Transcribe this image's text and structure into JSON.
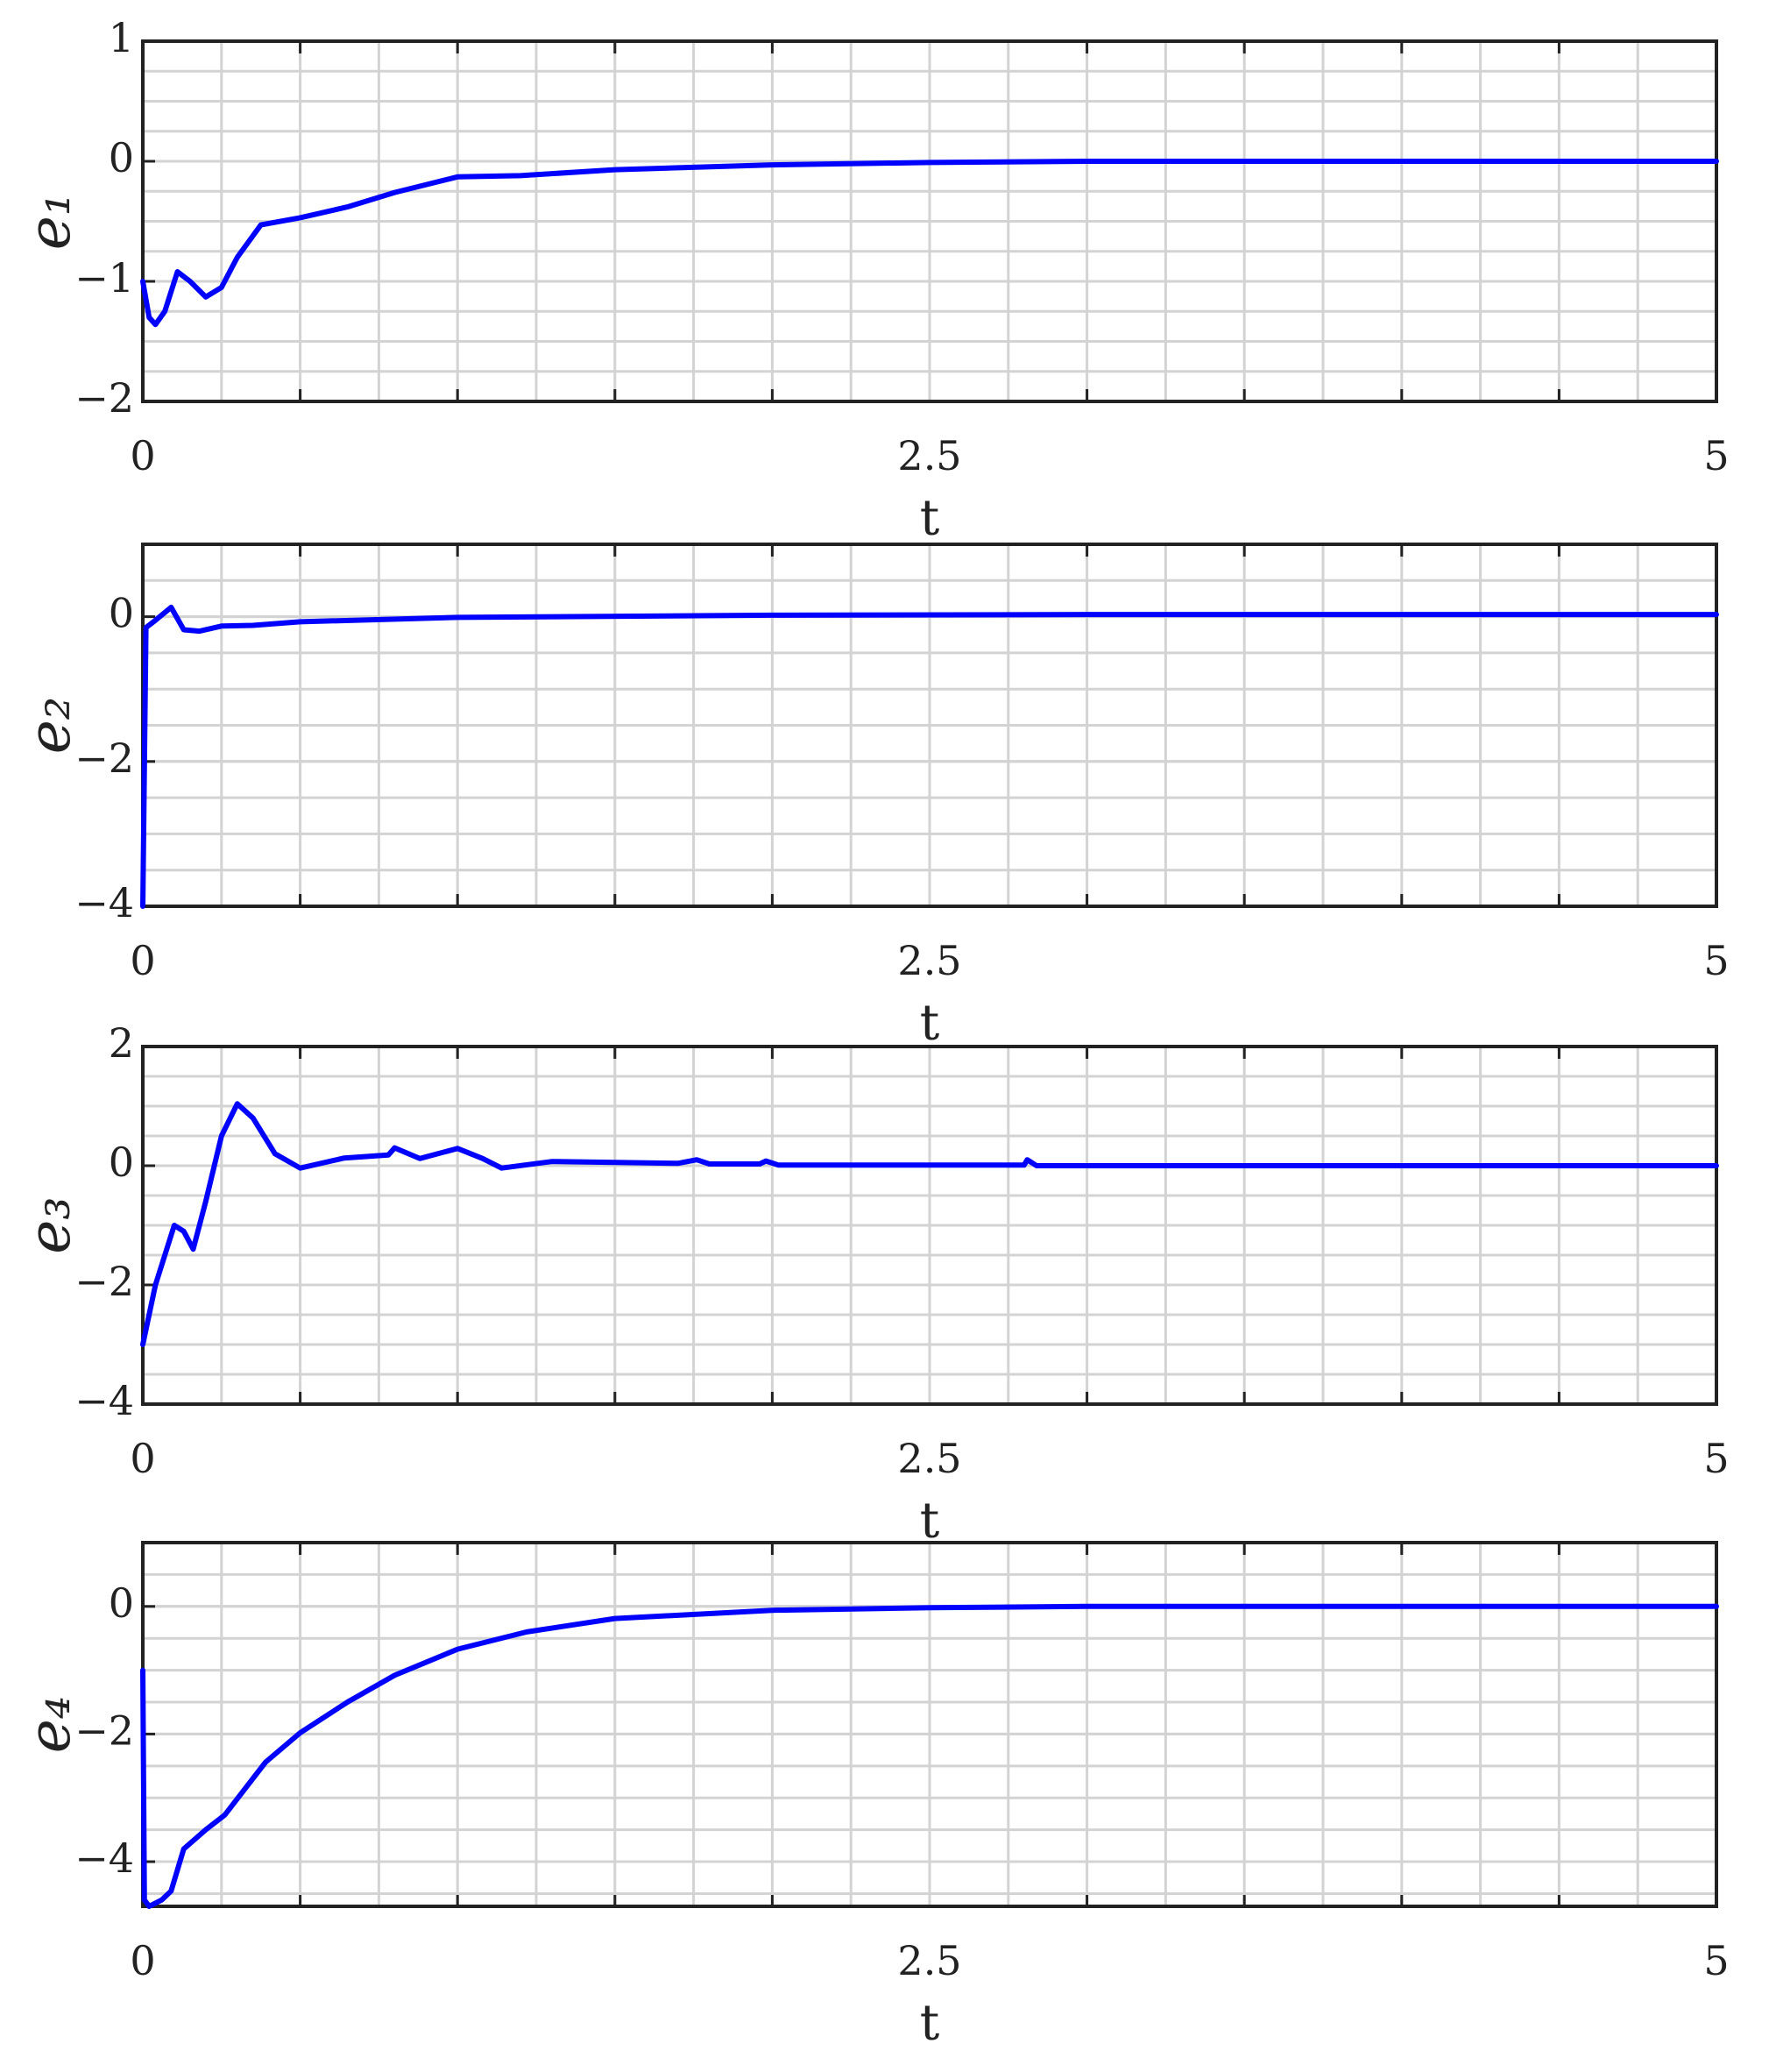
{
  "chart_data": [
    {
      "type": "line",
      "xlabel": "t",
      "ylabel": "e₁",
      "x": [
        0,
        0.02,
        0.04,
        0.07,
        0.11,
        0.15,
        0.2,
        0.25,
        0.3,
        0.375,
        0.5,
        0.65,
        0.8,
        1.0,
        1.2,
        1.5,
        2.0,
        2.5,
        3.0,
        4.0,
        5.0
      ],
      "series": [
        {
          "color": "#0000ff",
          "values": [
            -1.0,
            -1.3,
            -1.36,
            -1.25,
            -0.92,
            -1.0,
            -1.13,
            -1.05,
            -0.8,
            -0.53,
            -0.47,
            -0.38,
            -0.26,
            -0.13,
            -0.12,
            -0.07,
            -0.03,
            -0.01,
            0,
            0,
            0
          ]
        }
      ],
      "xlim": [
        0,
        5
      ],
      "xticks": [
        0,
        2.5,
        5
      ],
      "ylim": [
        -2,
        1
      ],
      "yticks": [
        {
          "value": -2,
          "label": "−2"
        },
        {
          "value": -1,
          "label": "−1"
        },
        0,
        1
      ],
      "grid": true
    },
    {
      "type": "line",
      "xlabel": "t",
      "ylabel": "e₂",
      "x": [
        0,
        0.01,
        0.04,
        0.09,
        0.13,
        0.18,
        0.25,
        0.35,
        0.5,
        1.0,
        2.0,
        3.0,
        4.0,
        5.0
      ],
      "series": [
        {
          "color": "#0000ff",
          "values": [
            -4,
            -0.15,
            -0.05,
            0.13,
            -0.18,
            -0.2,
            -0.13,
            -0.12,
            -0.07,
            -0.01,
            0.02,
            0.03,
            0.03,
            0.03
          ]
        }
      ],
      "xlim": [
        0,
        5
      ],
      "xticks": [
        0,
        2.5,
        5
      ],
      "ylim": [
        -4,
        1
      ],
      "yticks": [
        {
          "value": -4,
          "label": "−4"
        },
        {
          "value": -2,
          "label": "−2"
        },
        0
      ],
      "grid": true
    },
    {
      "type": "line",
      "xlabel": "t",
      "ylabel": "e₃",
      "x": [
        0,
        0.04,
        0.1,
        0.13,
        0.16,
        0.2,
        0.25,
        0.3,
        0.35,
        0.42,
        0.5,
        0.64,
        0.78,
        0.8,
        0.88,
        1.0,
        1.08,
        1.14,
        1.3,
        1.7,
        1.76,
        1.8,
        1.96,
        1.98,
        2.02,
        2.8,
        2.81,
        2.84,
        3.5,
        5
      ],
      "series": [
        {
          "color": "#0000ff",
          "values": [
            -3,
            -2,
            -1.0,
            -1.1,
            -1.4,
            -0.6,
            0.5,
            1.04,
            0.8,
            0.2,
            -0.04,
            0.13,
            0.18,
            0.3,
            0.12,
            0.29,
            0.12,
            -0.04,
            0.07,
            0.04,
            0.1,
            0.03,
            0.03,
            0.08,
            0.01,
            0.01,
            0.1,
            0,
            0,
            0
          ]
        }
      ],
      "xlim": [
        0,
        5
      ],
      "xticks": [
        0,
        2.5,
        5
      ],
      "ylim": [
        -4,
        2
      ],
      "yticks": [
        {
          "value": -4,
          "label": "−4"
        },
        {
          "value": -2,
          "label": "−2"
        },
        0,
        2
      ],
      "grid": true
    },
    {
      "type": "line",
      "xlabel": "t",
      "ylabel": "e₄",
      "x": [
        0,
        0.005,
        0.02,
        0.06,
        0.09,
        0.13,
        0.2,
        0.26,
        0.39,
        0.5,
        0.65,
        0.8,
        1.0,
        1.22,
        1.5,
        2.0,
        2.5,
        3.0,
        5
      ],
      "series": [
        {
          "color": "#0000ff",
          "values": [
            -1,
            -4.6,
            -4.7,
            -4.6,
            -4.46,
            -3.8,
            -3.5,
            -3.27,
            -2.44,
            -1.98,
            -1.5,
            -1.08,
            -0.67,
            -0.4,
            -0.19,
            -0.06,
            -0.02,
            0,
            0
          ]
        }
      ],
      "xlim": [
        0,
        5
      ],
      "xticks": [
        0,
        2.5,
        5
      ],
      "ylim": [
        -4.7,
        1
      ],
      "yticks": [
        {
          "value": -4,
          "label": "−4"
        },
        {
          "value": -2,
          "label": "−2"
        },
        0
      ],
      "grid": true
    }
  ]
}
